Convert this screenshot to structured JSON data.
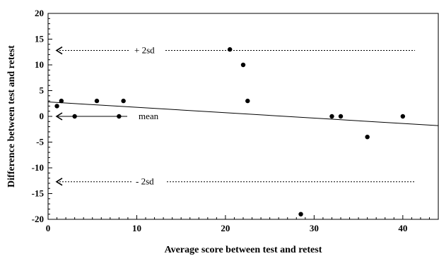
{
  "chart_data": {
    "type": "scatter",
    "xlabel": "Average score between test and retest",
    "ylabel": "Difference between test and retest",
    "xlim": [
      0,
      44
    ],
    "ylim": [
      -20,
      20
    ],
    "x_ticks": [
      0,
      10,
      20,
      30,
      40
    ],
    "y_ticks": [
      20,
      15,
      10,
      5,
      0,
      -5,
      -10,
      -15,
      -20
    ],
    "grid": false,
    "points": [
      {
        "x": 1,
        "y": 2
      },
      {
        "x": 1.5,
        "y": 3
      },
      {
        "x": 3,
        "y": 0
      },
      {
        "x": 5.5,
        "y": 3
      },
      {
        "x": 8,
        "y": 0
      },
      {
        "x": 8.5,
        "y": 3
      },
      {
        "x": 20.5,
        "y": 13
      },
      {
        "x": 22,
        "y": 10
      },
      {
        "x": 22.5,
        "y": 3
      },
      {
        "x": 28.5,
        "y": -19
      },
      {
        "x": 32,
        "y": 0
      },
      {
        "x": 33,
        "y": 0
      },
      {
        "x": 36,
        "y": -4
      },
      {
        "x": 40,
        "y": 0
      }
    ],
    "trend_line": {
      "x": [
        0,
        44
      ],
      "y": [
        2.8,
        -1.8
      ]
    },
    "reference_lines": [
      {
        "label": "+ 2sd",
        "y": 12.8,
        "style": "dotted"
      },
      {
        "label": "mean",
        "y": 0,
        "style": "solid"
      },
      {
        "label": "- 2sd",
        "y": -12.7,
        "style": "dotted"
      }
    ]
  }
}
